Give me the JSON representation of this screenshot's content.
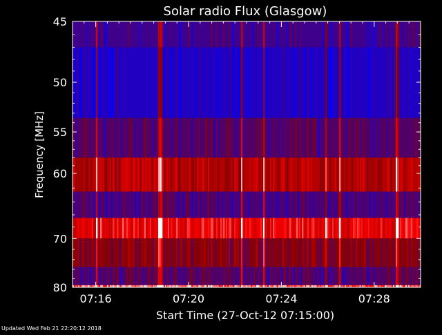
{
  "chart_data": {
    "type": "heatmap",
    "title": "Solar radio Flux (Glasgow)",
    "xlabel": "Start Time (27-Oct-12 07:15:00)",
    "ylabel": "Frequency [MHz]",
    "x_ticks": [
      "07:16",
      "07:20",
      "07:24",
      "07:28"
    ],
    "x_tick_minutes": [
      1,
      5,
      9,
      13
    ],
    "x_range_minutes": [
      0.0,
      15.0
    ],
    "y_ticks": [
      45,
      50,
      55,
      60,
      70,
      80
    ],
    "y_axis_scale": "reciprocal (1/f)",
    "y_range": [
      45,
      80
    ],
    "colormap": [
      "#0000ff",
      "#8b0000",
      "#ff0000",
      "#ffffff"
    ],
    "frequency_bands": [
      {
        "f_low": 45,
        "f_high": 47,
        "intensity": 0.15
      },
      {
        "f_low": 47,
        "f_high": 53.5,
        "intensity": 0.08
      },
      {
        "f_low": 53.5,
        "f_high": 58,
        "intensity": 0.2
      },
      {
        "f_low": 58,
        "f_high": 62.5,
        "intensity": 0.45
      },
      {
        "f_low": 62.5,
        "f_high": 66.5,
        "intensity": 0.18
      },
      {
        "f_low": 66.5,
        "f_high": 70,
        "intensity": 0.62
      },
      {
        "f_low": 70,
        "f_high": 75.5,
        "intensity": 0.32
      },
      {
        "f_low": 75.5,
        "f_high": 79.5,
        "intensity": 0.2
      },
      {
        "f_low": 79.5,
        "f_high": 80,
        "intensity": 0.8
      }
    ]
  },
  "footer": {
    "updated": "Updated Wed Feb 21 22:20:12 2018"
  },
  "colors": {
    "background": "#000000",
    "axis": "#ffffff",
    "text": "#ffffff",
    "low": "#0000ff",
    "high": "#ff0000"
  }
}
